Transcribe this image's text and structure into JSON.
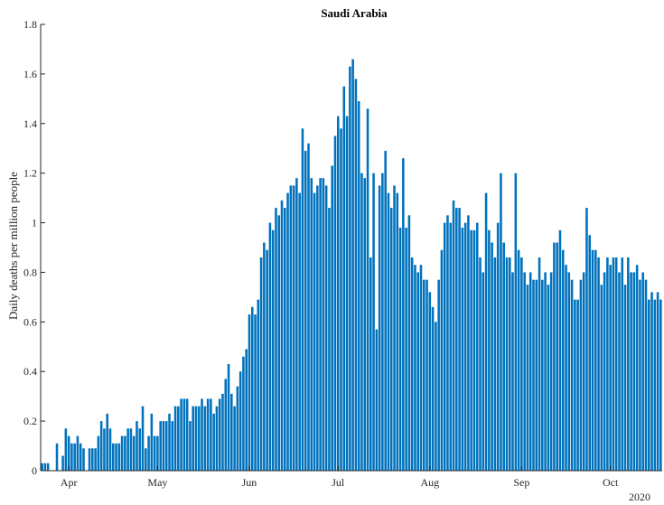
{
  "chart_data": {
    "type": "bar",
    "title": "Saudi Arabia",
    "xlabel": "",
    "ylabel": "Daily deaths per million people",
    "ylim": [
      0,
      1.8
    ],
    "yticks": [
      0,
      0.2,
      0.4,
      0.6,
      0.8,
      1,
      1.2,
      1.4,
      1.6,
      1.8
    ],
    "ytick_labels": [
      "0",
      "0.2",
      "0.4",
      "0.6",
      "0.8",
      "1",
      "1.2",
      "1.4",
      "1.6",
      "1.8"
    ],
    "x_start": "2020-03-23",
    "xticks": [
      {
        "date": "2020-04-01",
        "label": "Apr"
      },
      {
        "date": "2020-05-01",
        "label": "May"
      },
      {
        "date": "2020-06-01",
        "label": "Jun"
      },
      {
        "date": "2020-07-01",
        "label": "Jul"
      },
      {
        "date": "2020-08-01",
        "label": "Aug"
      },
      {
        "date": "2020-09-01",
        "label": "Sep"
      },
      {
        "date": "2020-10-01",
        "label": "Oct"
      }
    ],
    "year_label": "2020",
    "bar_color": "#0072BD",
    "values": [
      0.03,
      0.03,
      0.03,
      0,
      0,
      0.11,
      0,
      0.06,
      0.17,
      0.14,
      0.11,
      0.11,
      0.14,
      0.11,
      0.09,
      0,
      0.09,
      0.09,
      0.09,
      0.14,
      0.2,
      0.17,
      0.23,
      0.17,
      0.11,
      0.11,
      0.11,
      0.14,
      0.14,
      0.17,
      0.17,
      0.14,
      0.2,
      0.17,
      0.26,
      0.09,
      0.14,
      0.23,
      0.14,
      0.14,
      0.2,
      0.2,
      0.2,
      0.23,
      0.2,
      0.26,
      0.26,
      0.29,
      0.29,
      0.29,
      0.2,
      0.26,
      0.26,
      0.26,
      0.29,
      0.26,
      0.29,
      0.29,
      0.23,
      0.26,
      0.29,
      0.31,
      0.37,
      0.43,
      0.31,
      0.26,
      0.34,
      0.4,
      0.46,
      0.49,
      0.63,
      0.66,
      0.63,
      0.69,
      0.86,
      0.92,
      0.89,
      1.0,
      0.97,
      1.06,
      1.03,
      1.09,
      1.06,
      1.12,
      1.15,
      1.15,
      1.18,
      1.12,
      1.38,
      1.29,
      1.32,
      1.18,
      1.12,
      1.15,
      1.18,
      1.18,
      1.15,
      1.06,
      1.23,
      1.35,
      1.43,
      1.38,
      1.55,
      1.43,
      1.63,
      1.66,
      1.58,
      1.49,
      1.2,
      1.18,
      1.46,
      0.86,
      1.2,
      0.57,
      1.15,
      1.2,
      1.29,
      1.12,
      1.06,
      1.15,
      1.12,
      0.98,
      1.26,
      0.98,
      1.03,
      0.86,
      0.83,
      0.8,
      0.83,
      0.77,
      0.77,
      0.72,
      0.66,
      0.6,
      0.77,
      0.89,
      1.0,
      1.03,
      1.0,
      1.09,
      1.06,
      1.06,
      0.98,
      1.0,
      1.03,
      0.97,
      0.97,
      1.0,
      0.86,
      0.8,
      1.12,
      0.97,
      0.92,
      0.86,
      1.0,
      1.2,
      0.92,
      0.86,
      0.86,
      0.8,
      1.2,
      0.89,
      0.86,
      0.8,
      0.75,
      0.8,
      0.77,
      0.77,
      0.86,
      0.77,
      0.8,
      0.75,
      0.8,
      0.92,
      0.92,
      0.97,
      0.89,
      0.83,
      0.8,
      0.77,
      0.69,
      0.69,
      0.77,
      0.8,
      1.06,
      0.95,
      0.89,
      0.89,
      0.86,
      0.75,
      0.8,
      0.86,
      0.83,
      0.86,
      0.86,
      0.8,
      0.86,
      0.75,
      0.86,
      0.8,
      0.8,
      0.83,
      0.77,
      0.8,
      0.77,
      0.69,
      0.72,
      0.69,
      0.72,
      0.69
    ]
  }
}
